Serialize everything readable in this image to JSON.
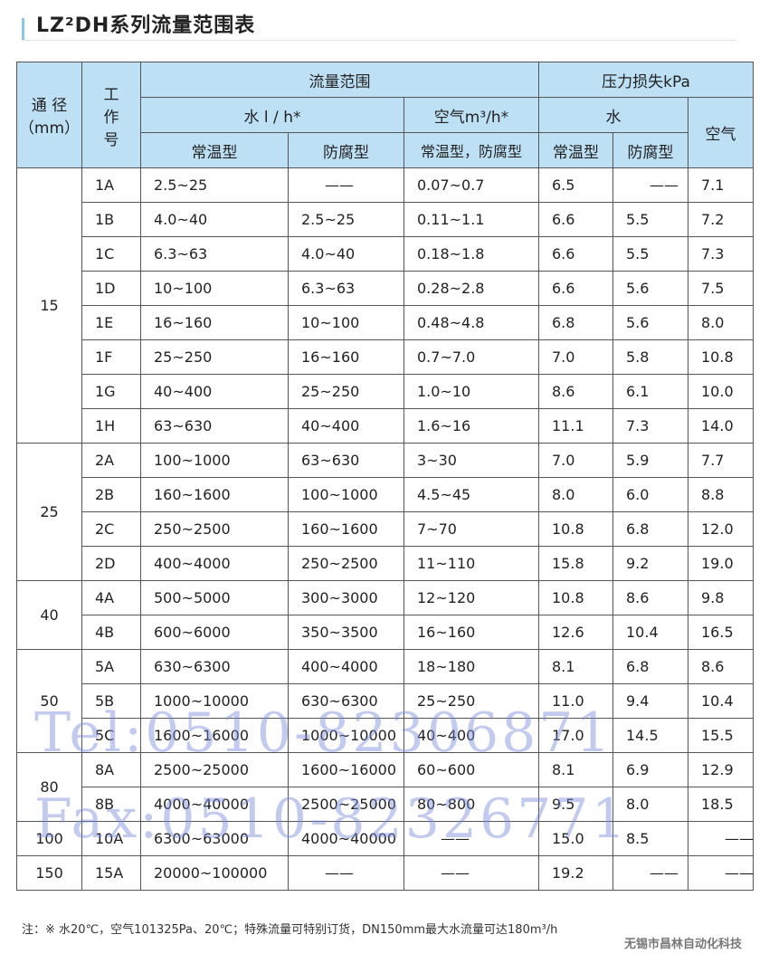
{
  "title": "LZ²DH系列流量范围表",
  "header": {
    "diameter": "通 径（mm）",
    "work_no": "工作号",
    "flow_range": "流量范围",
    "water_flow": "水 l / h*",
    "air_flow": "空气m³/h*",
    "pressure_loss": "压力损失kPa",
    "water": "水",
    "air": "空气",
    "normal": "常温型",
    "anticorrosion": "防腐型",
    "air_types": "常温型，防腐型"
  },
  "groups": [
    {
      "diameter": "15",
      "rows": [
        [
          "1A",
          "2.5~25",
          "——",
          "0.07~0.7",
          "6.5",
          "——",
          "7.1"
        ],
        [
          "1B",
          "4.0~40",
          "2.5~25",
          "0.11~1.1",
          "6.6",
          "5.5",
          "7.2"
        ],
        [
          "1C",
          "6.3~63",
          "4.0~40",
          "0.18~1.8",
          "6.6",
          "5.5",
          "7.3"
        ],
        [
          "1D",
          "10~100",
          "6.3~63",
          "0.28~2.8",
          "6.6",
          "5.6",
          "7.5"
        ],
        [
          "1E",
          "16~160",
          "10~100",
          "0.48~4.8",
          "6.8",
          "5.6",
          "8.0"
        ],
        [
          "1F",
          "25~250",
          "16~160",
          "0.7~7.0",
          "7.0",
          "5.8",
          "10.8"
        ],
        [
          "1G",
          "40~400",
          "25~250",
          "1.0~10",
          "8.6",
          "6.1",
          "10.0"
        ],
        [
          "1H",
          "63~630",
          "40~400",
          "1.6~16",
          "11.1",
          "7.3",
          "14.0"
        ]
      ]
    },
    {
      "diameter": "25",
      "rows": [
        [
          "2A",
          "100~1000",
          "63~630",
          "3~30",
          "7.0",
          "5.9",
          "7.7"
        ],
        [
          "2B",
          "160~1600",
          "100~1000",
          "4.5~45",
          "8.0",
          "6.0",
          "8.8"
        ],
        [
          "2C",
          "250~2500",
          "160~1600",
          "7~70",
          "10.8",
          "6.8",
          "12.0"
        ],
        [
          "2D",
          "400~4000",
          "250~2500",
          "11~110",
          "15.8",
          "9.2",
          "19.0"
        ]
      ]
    },
    {
      "diameter": "40",
      "rows": [
        [
          "4A",
          "500~5000",
          "300~3000",
          "12~120",
          "10.8",
          "8.6",
          "9.8"
        ],
        [
          "4B",
          "600~6000",
          "350~3500",
          "16~160",
          "12.6",
          "10.4",
          "16.5"
        ]
      ]
    },
    {
      "diameter": "50",
      "rows": [
        [
          "5A",
          "630~6300",
          "400~4000",
          "18~180",
          "8.1",
          "6.8",
          "8.6"
        ],
        [
          "5B",
          "1000~10000",
          "630~6300",
          "25~250",
          "11.0",
          "9.4",
          "10.4"
        ],
        [
          "5C",
          "1600~16000",
          "1000~10000",
          "40~400",
          "17.0",
          "14.5",
          "15.5"
        ]
      ]
    },
    {
      "diameter": "80",
      "rows": [
        [
          "8A",
          "2500~25000",
          "1600~16000",
          "60~600",
          "8.1",
          "6.9",
          "12.9"
        ],
        [
          "8B",
          "4000~40000",
          "2500~25000",
          "80~800",
          "9.5",
          "8.0",
          "18.5"
        ]
      ]
    },
    {
      "diameter": "100",
      "rows": [
        [
          "10A",
          "6300~63000",
          "4000~40000",
          "——",
          "15.0",
          "8.5",
          "——"
        ]
      ]
    },
    {
      "diameter": "150",
      "rows": [
        [
          "15A",
          "20000~100000",
          "——",
          "——",
          "19.2",
          "——",
          "——"
        ]
      ]
    }
  ],
  "note": "注：※   水20℃，空气101325Pa、20℃；特殊流量可特别订货，DN150mm最大水流量可达180m³/h",
  "brand": "无锡市昌林自动化科技",
  "watermark": {
    "tel": "Tel:0510-82306871",
    "fax": "Fax:0510-82326771"
  }
}
